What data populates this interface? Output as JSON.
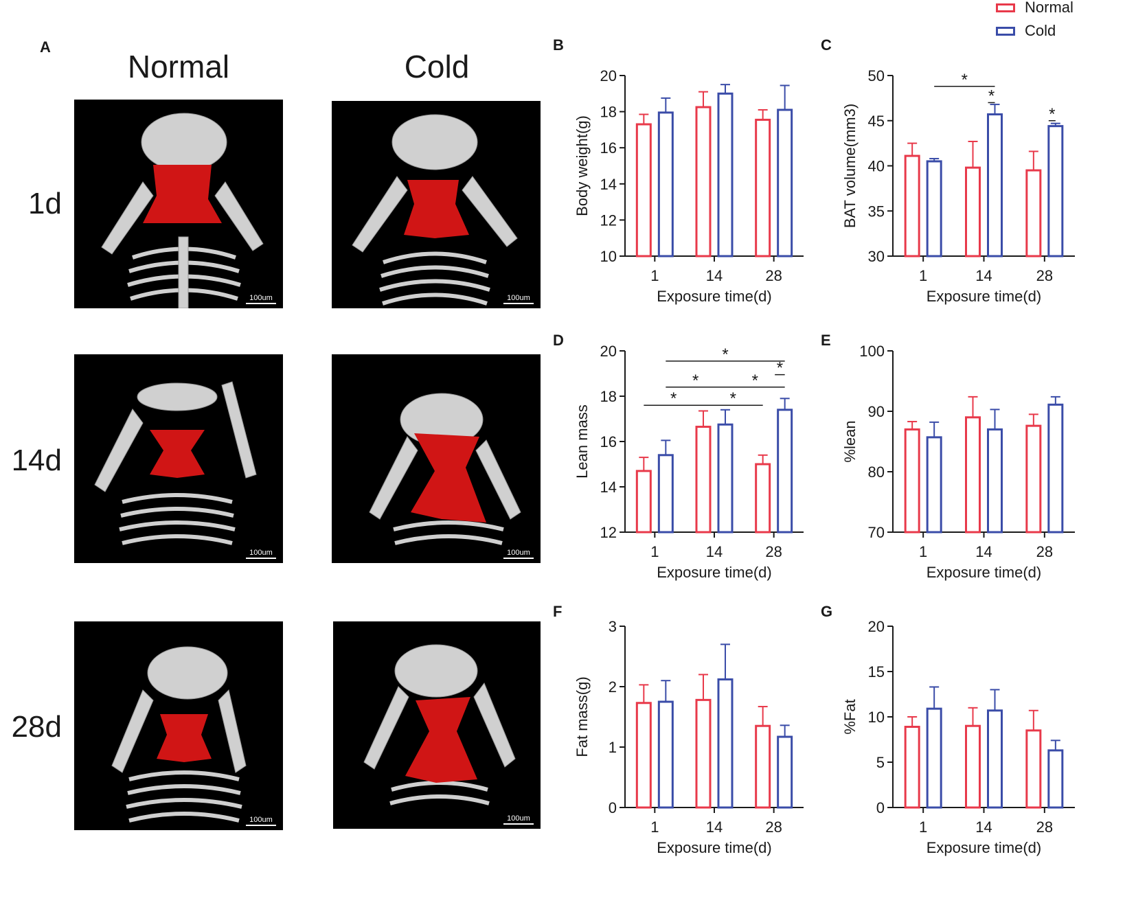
{
  "colors": {
    "normal": "#e8394a",
    "cold": "#3a4ca8",
    "axis": "#1a1a1a",
    "organ": "#d01515",
    "bone": "#cfcfcf"
  },
  "legend": {
    "normal": "Normal",
    "cold": "Cold"
  },
  "panelA": {
    "letter": "A",
    "columns": [
      "Normal",
      "Cold"
    ],
    "rows": [
      "1d",
      "14d",
      "28d"
    ],
    "scale_label": "100um"
  },
  "chart_data": [
    {
      "panel": "B",
      "type": "bar",
      "categories": [
        "1",
        "14",
        "28"
      ],
      "series": [
        {
          "name": "Normal",
          "values": [
            17.3,
            18.25,
            17.55
          ],
          "errors": [
            0.55,
            0.85,
            0.55
          ]
        },
        {
          "name": "Cold",
          "values": [
            17.95,
            19.0,
            18.1
          ],
          "errors": [
            0.8,
            0.5,
            1.35
          ]
        }
      ],
      "ylabel": "Body weight(g)",
      "xlabel": "Exposure time(d)",
      "ylim": [
        10,
        20
      ],
      "yticks": [
        "10",
        "12",
        "14",
        "16",
        "18",
        "20"
      ],
      "sig": []
    },
    {
      "panel": "C",
      "type": "bar",
      "categories": [
        "1",
        "14",
        "28"
      ],
      "series": [
        {
          "name": "Normal",
          "values": [
            41.1,
            39.8,
            39.5
          ],
          "errors": [
            1.4,
            2.9,
            2.1
          ]
        },
        {
          "name": "Cold",
          "values": [
            40.5,
            45.7,
            44.4
          ],
          "errors": [
            0.3,
            1.1,
            0.3
          ]
        }
      ],
      "ylabel": "BAT volume(mm3)",
      "xlabel": "Exposure time(d)",
      "ylim": [
        30,
        50
      ],
      "yticks": [
        "30",
        "35",
        "40",
        "45",
        "50"
      ],
      "sig": [
        {
          "from": [
            0,
            1
          ],
          "to": [
            1,
            1
          ],
          "y": 48.8,
          "label": "*"
        },
        {
          "from": [
            1,
            0.7
          ],
          "to": [
            1,
            1
          ],
          "y": 47.0,
          "label": "*"
        },
        {
          "from": [
            2,
            0.7
          ],
          "to": [
            2,
            1
          ],
          "y": 45.0,
          "label": "*"
        }
      ]
    },
    {
      "panel": "D",
      "type": "bar",
      "categories": [
        "1",
        "14",
        "28"
      ],
      "series": [
        {
          "name": "Normal",
          "values": [
            14.7,
            16.65,
            15.0
          ],
          "errors": [
            0.6,
            0.7,
            0.4
          ]
        },
        {
          "name": "Cold",
          "values": [
            15.4,
            16.75,
            17.4
          ],
          "errors": [
            0.65,
            0.65,
            0.5
          ]
        }
      ],
      "ylabel": "Lean mass",
      "xlabel": "Exposure time(d)",
      "ylim": [
        12,
        20
      ],
      "yticks": [
        "12",
        "14",
        "16",
        "18",
        "20"
      ],
      "sig": [
        {
          "from": [
            0,
            0
          ],
          "to": [
            1,
            0
          ],
          "y": 17.6,
          "label": "*"
        },
        {
          "from": [
            0,
            1
          ],
          "to": [
            1,
            1
          ],
          "y": 18.4,
          "label": "*"
        },
        {
          "from": [
            0,
            1
          ],
          "to": [
            2,
            1
          ],
          "y": 19.55,
          "label": "*"
        },
        {
          "from": [
            1,
            0
          ],
          "to": [
            2,
            0
          ],
          "y": 17.6,
          "label": "*"
        },
        {
          "from": [
            1,
            1
          ],
          "to": [
            2,
            1
          ],
          "y": 18.4,
          "label": "*"
        },
        {
          "from": [
            2,
            0.55
          ],
          "to": [
            2,
            1
          ],
          "y": 18.95,
          "label": "*"
        }
      ]
    },
    {
      "panel": "E",
      "type": "bar",
      "categories": [
        "1",
        "14",
        "28"
      ],
      "series": [
        {
          "name": "Normal",
          "values": [
            87.0,
            89.0,
            87.6
          ],
          "errors": [
            1.3,
            3.4,
            1.9
          ]
        },
        {
          "name": "Cold",
          "values": [
            85.7,
            87.0,
            91.1
          ],
          "errors": [
            2.5,
            3.3,
            1.3
          ]
        }
      ],
      "ylabel": "%lean",
      "xlabel": "Exposure time(d)",
      "ylim": [
        70,
        100
      ],
      "yticks": [
        "70",
        "80",
        "90",
        "100"
      ],
      "sig": []
    },
    {
      "panel": "F",
      "type": "bar",
      "categories": [
        "1",
        "14",
        "28"
      ],
      "series": [
        {
          "name": "Normal",
          "values": [
            1.73,
            1.78,
            1.35
          ],
          "errors": [
            0.3,
            0.42,
            0.32
          ]
        },
        {
          "name": "Cold",
          "values": [
            1.75,
            2.12,
            1.17
          ],
          "errors": [
            0.35,
            0.58,
            0.19
          ]
        }
      ],
      "ylabel": "Fat mass(g)",
      "xlabel": "Exposure time(d)",
      "ylim": [
        0,
        3
      ],
      "yticks": [
        "0",
        "1",
        "2",
        "3"
      ],
      "sig": []
    },
    {
      "panel": "G",
      "type": "bar",
      "categories": [
        "1",
        "14",
        "28"
      ],
      "series": [
        {
          "name": "Normal",
          "values": [
            8.9,
            9.0,
            8.5
          ],
          "errors": [
            1.1,
            2.0,
            2.2
          ]
        },
        {
          "name": "Cold",
          "values": [
            10.9,
            10.7,
            6.3
          ],
          "errors": [
            2.4,
            2.3,
            1.1
          ]
        }
      ],
      "ylabel": "%Fat",
      "xlabel": "Exposure time(d)",
      "ylim": [
        0,
        20
      ],
      "yticks": [
        "0",
        "5",
        "10",
        "15",
        "20"
      ],
      "sig": []
    }
  ]
}
